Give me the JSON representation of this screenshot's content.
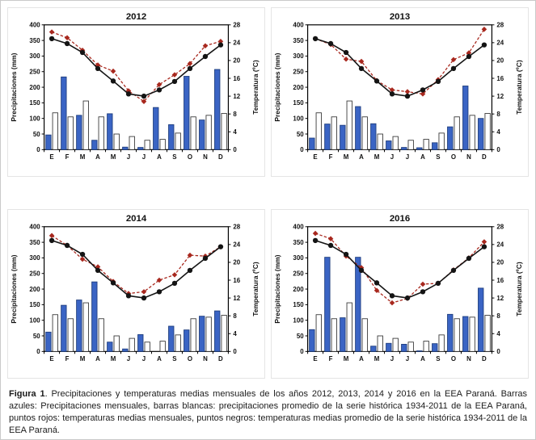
{
  "figure": {
    "caption_label": "Figura 1",
    "caption_text": ". Precipitaciones y temperaturas medias mensuales de los años 2012, 2013, 2014 y 2016 en la EEA Paraná. Barras azules: Precipitaciones mensuales, barras blancas: precipitaciones promedio de la serie histórica 1934-2011 de la EEA Paraná, puntos rojos: temperaturas medias mensuales, puntos negros: temperaturas medias promedio de la serie histórica 1934-2011 de la EEA Paraná."
  },
  "colors": {
    "bar_monthly_fill": "#3A64C4",
    "bar_monthly_border": "#1F3E7E",
    "bar_historic_fill": "#FFFFFF",
    "bar_historic_border": "#3A3A3A",
    "temp_monthly": "#A8281E",
    "temp_historic": "#141414",
    "axis": "#000000"
  },
  "chart_data": [
    {
      "type": "bar",
      "subtype": "combo-bar-line",
      "title": "2012",
      "categories": [
        "E",
        "F",
        "M",
        "A",
        "M",
        "J",
        "J",
        "A",
        "S",
        "O",
        "N",
        "D"
      ],
      "ylabel_left": "Precipitaciones (mm)",
      "ylabel_right": "Temperatura (ºC)",
      "ylim_left": [
        0,
        400
      ],
      "yticks_left": [
        0,
        50,
        100,
        150,
        200,
        250,
        300,
        350,
        400
      ],
      "ylim_right": [
        0,
        28
      ],
      "yticks_right": [
        0,
        4,
        8,
        12,
        16,
        20,
        24,
        28
      ],
      "grid": false,
      "legend": "none",
      "series": [
        {
          "name": "Precipitaciones mensuales",
          "type": "bar",
          "axis": "left",
          "values": [
            47,
            233,
            110,
            30,
            115,
            8,
            7,
            135,
            80,
            235,
            95,
            257
          ]
        },
        {
          "name": "Precipitaciones promedio serie histórica 1934-2011",
          "type": "bar",
          "axis": "left",
          "values": [
            118,
            105,
            156,
            105,
            50,
            42,
            30,
            33,
            53,
            105,
            110,
            116
          ]
        },
        {
          "name": "Temperaturas medias mensuales",
          "type": "line",
          "axis": "right",
          "values": [
            26.4,
            25.1,
            22.3,
            19.0,
            17.6,
            13.2,
            10.8,
            14.6,
            16.8,
            19.3,
            23.3,
            24.3
          ]
        },
        {
          "name": "Temperaturas medias promedio serie histórica 1934-2011",
          "type": "line",
          "axis": "right",
          "values": [
            24.9,
            23.8,
            21.8,
            18.2,
            15.4,
            12.5,
            12.0,
            13.4,
            15.3,
            18.2,
            20.9,
            23.5
          ]
        }
      ]
    },
    {
      "type": "bar",
      "subtype": "combo-bar-line",
      "title": "2013",
      "categories": [
        "E",
        "F",
        "M",
        "A",
        "M",
        "J",
        "J",
        "A",
        "S",
        "O",
        "N",
        "D"
      ],
      "ylabel_left": "Precipitaciones (mm)",
      "ylabel_right": "Temperatura (ºC)",
      "ylim_left": [
        0,
        400
      ],
      "yticks_left": [
        0,
        50,
        100,
        150,
        200,
        250,
        300,
        350,
        400
      ],
      "ylim_right": [
        0,
        28
      ],
      "yticks_right": [
        0,
        4,
        8,
        12,
        16,
        20,
        24,
        28
      ],
      "grid": false,
      "legend": "none",
      "series": [
        {
          "name": "Precipitaciones mensuales",
          "type": "bar",
          "axis": "left",
          "values": [
            37,
            82,
            78,
            138,
            83,
            28,
            7,
            6,
            22,
            73,
            204,
            100
          ]
        },
        {
          "name": "Precipitaciones promedio serie histórica 1934-2011",
          "type": "bar",
          "axis": "left",
          "values": [
            118,
            105,
            156,
            105,
            50,
            42,
            30,
            33,
            53,
            105,
            110,
            116
          ]
        },
        {
          "name": "Temperaturas medias mensuales",
          "type": "line",
          "axis": "right",
          "values": [
            24.9,
            23.6,
            20.3,
            19.8,
            15.5,
            13.4,
            13.0,
            12.5,
            15.7,
            20.2,
            21.7,
            27.0
          ]
        },
        {
          "name": "Temperaturas medias promedio serie histórica 1934-2011",
          "type": "line",
          "axis": "right",
          "values": [
            24.9,
            23.8,
            21.8,
            18.2,
            15.4,
            12.5,
            12.0,
            13.4,
            15.3,
            18.2,
            20.9,
            23.5
          ]
        }
      ]
    },
    {
      "type": "bar",
      "subtype": "combo-bar-line",
      "title": "2014",
      "categories": [
        "E",
        "F",
        "M",
        "A",
        "M",
        "J",
        "J",
        "A",
        "S",
        "O",
        "N",
        "D"
      ],
      "ylabel_left": "Precipitaciones (mm)",
      "ylabel_right": "Temperatura (ºC)",
      "ylim_left": [
        0,
        400
      ],
      "yticks_left": [
        0,
        50,
        100,
        150,
        200,
        250,
        300,
        350,
        400
      ],
      "ylim_right": [
        0,
        28
      ],
      "yticks_right": [
        0,
        4,
        8,
        12,
        16,
        20,
        24,
        28
      ],
      "grid": false,
      "legend": "none",
      "series": [
        {
          "name": "Precipitaciones mensuales",
          "type": "bar",
          "axis": "left",
          "values": [
            62,
            148,
            165,
            223,
            30,
            8,
            54,
            0,
            81,
            69,
            113,
            130
          ]
        },
        {
          "name": "Precipitaciones promedio serie histórica 1934-2011",
          "type": "bar",
          "axis": "left",
          "values": [
            118,
            105,
            156,
            105,
            50,
            42,
            30,
            33,
            53,
            105,
            110,
            116
          ]
        },
        {
          "name": "Temperaturas medias mensuales",
          "type": "line",
          "axis": "right",
          "values": [
            26.0,
            23.8,
            20.7,
            19.0,
            15.7,
            13.0,
            13.4,
            16.0,
            17.2,
            21.6,
            21.4,
            23.5
          ]
        },
        {
          "name": "Temperaturas medias promedio serie histórica 1934-2011",
          "type": "line",
          "axis": "right",
          "values": [
            24.9,
            23.8,
            21.8,
            18.2,
            15.4,
            12.5,
            12.0,
            13.4,
            15.3,
            18.2,
            20.9,
            23.5
          ]
        }
      ]
    },
    {
      "type": "bar",
      "subtype": "combo-bar-line",
      "title": "2016",
      "categories": [
        "E",
        "F",
        "M",
        "A",
        "M",
        "J",
        "J",
        "A",
        "S",
        "O",
        "N",
        "D"
      ],
      "ylabel_left": "Precipitaciones (mm)",
      "ylabel_right": "Temperatura (ºC)",
      "ylim_left": [
        0,
        400
      ],
      "yticks_left": [
        0,
        50,
        100,
        150,
        200,
        250,
        300,
        350,
        400
      ],
      "ylim_right": [
        0,
        28
      ],
      "yticks_right": [
        0,
        4,
        8,
        12,
        16,
        20,
        24,
        28
      ],
      "grid": false,
      "legend": "none",
      "series": [
        {
          "name": "Precipitaciones mensuales",
          "type": "bar",
          "axis": "left",
          "values": [
            70,
            302,
            108,
            302,
            17,
            26,
            23,
            2,
            25,
            119,
            112,
            203
          ]
        },
        {
          "name": "Precipitaciones promedio serie histórica 1934-2011",
          "type": "bar",
          "axis": "left",
          "values": [
            118,
            105,
            156,
            105,
            50,
            42,
            30,
            33,
            53,
            105,
            110,
            116
          ]
        },
        {
          "name": "Temperaturas medias mensuales",
          "type": "line",
          "axis": "right",
          "values": [
            26.5,
            25.3,
            21.4,
            18.8,
            13.7,
            10.9,
            11.9,
            15.1,
            15.3,
            18.3,
            21.0,
            24.6
          ]
        },
        {
          "name": "Temperaturas medias promedio serie histórica 1934-2011",
          "type": "line",
          "axis": "right",
          "values": [
            24.9,
            23.8,
            21.8,
            18.2,
            15.4,
            12.5,
            12.0,
            13.4,
            15.3,
            18.2,
            20.9,
            23.5
          ]
        }
      ]
    }
  ]
}
